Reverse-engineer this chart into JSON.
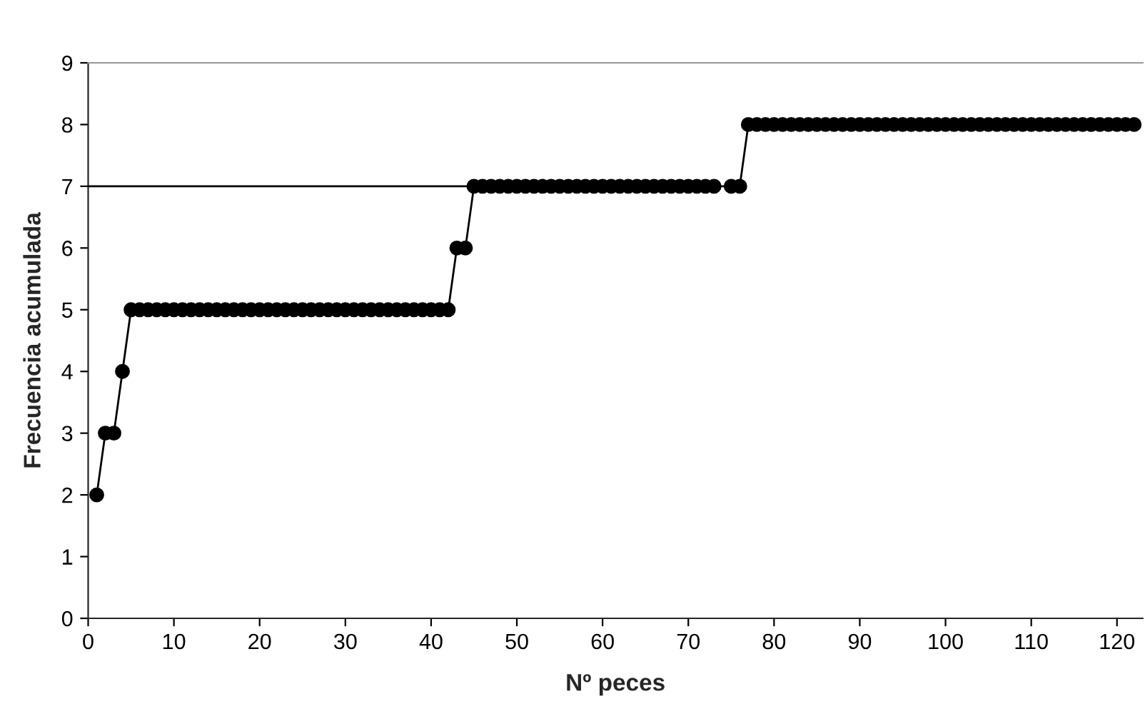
{
  "chart_data": {
    "type": "line",
    "xlabel": "Nº peces",
    "ylabel": "Frecuencia acumulada",
    "xlim": [
      0,
      123
    ],
    "ylim": [
      0,
      9
    ],
    "xticks": [
      0,
      10,
      20,
      30,
      40,
      50,
      60,
      70,
      80,
      90,
      100,
      110,
      120
    ],
    "yticks": [
      0,
      1,
      2,
      3,
      4,
      5,
      6,
      7,
      8,
      9
    ],
    "grid": false,
    "legend": false,
    "series": [
      {
        "color": "#000000",
        "marker": "circle",
        "x": [
          1,
          2,
          3,
          4,
          5,
          6,
          7,
          8,
          9,
          10,
          11,
          12,
          13,
          14,
          15,
          16,
          17,
          18,
          19,
          20,
          21,
          22,
          23,
          24,
          25,
          26,
          27,
          28,
          29,
          30,
          31,
          32,
          33,
          34,
          35,
          36,
          37,
          38,
          39,
          40,
          41,
          42,
          43,
          44,
          45,
          46,
          47,
          48,
          49,
          50,
          51,
          52,
          53,
          54,
          55,
          56,
          57,
          58,
          59,
          60,
          61,
          62,
          63,
          64,
          65,
          66,
          67,
          68,
          69,
          70,
          71,
          72,
          73,
          75,
          76,
          77,
          78,
          79,
          80,
          81,
          82,
          83,
          84,
          85,
          86,
          87,
          88,
          89,
          90,
          91,
          92,
          93,
          94,
          95,
          96,
          97,
          98,
          99,
          100,
          101,
          102,
          103,
          104,
          105,
          106,
          107,
          108,
          109,
          110,
          111,
          112,
          113,
          114,
          115,
          116,
          117,
          118,
          119,
          120,
          121,
          122
        ],
        "values": [
          2,
          3,
          3,
          4,
          5,
          5,
          5,
          5,
          5,
          5,
          5,
          5,
          5,
          5,
          5,
          5,
          5,
          5,
          5,
          5,
          5,
          5,
          5,
          5,
          5,
          5,
          5,
          5,
          5,
          5,
          5,
          5,
          5,
          5,
          5,
          5,
          5,
          5,
          5,
          5,
          5,
          5,
          6,
          6,
          7,
          7,
          7,
          7,
          7,
          7,
          7,
          7,
          7,
          7,
          7,
          7,
          7,
          7,
          7,
          7,
          7,
          7,
          7,
          7,
          7,
          7,
          7,
          7,
          7,
          7,
          7,
          7,
          7,
          7,
          7,
          8,
          8,
          8,
          8,
          8,
          8,
          8,
          8,
          8,
          8,
          8,
          8,
          8,
          8,
          8,
          8,
          8,
          8,
          8,
          8,
          8,
          8,
          8,
          8,
          8,
          8,
          8,
          8,
          8,
          8,
          8,
          8,
          8,
          8,
          8,
          8,
          8,
          8,
          8,
          8,
          8,
          8,
          8,
          8,
          8,
          8
        ]
      },
      {
        "color": "#000000",
        "marker": "none",
        "x": [
          0,
          45
        ],
        "values": [
          7,
          7
        ]
      }
    ]
  }
}
